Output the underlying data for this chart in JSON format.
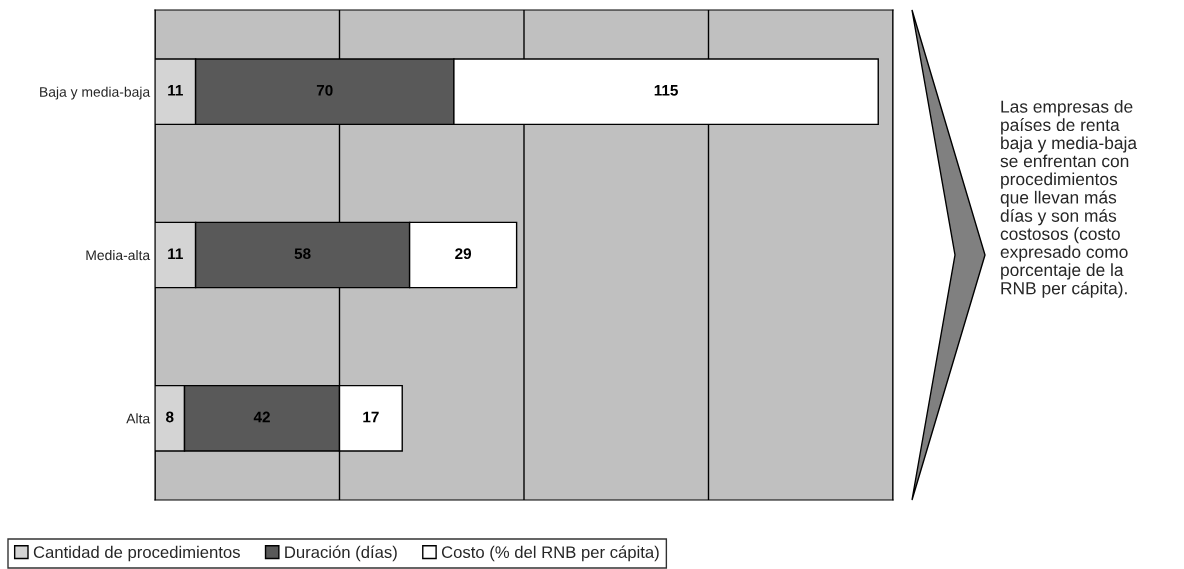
{
  "chart_data": {
    "type": "bar",
    "orientation": "horizontal",
    "stacked": true,
    "categories": [
      "Baja y media-baja",
      "Media-alta",
      "Alta"
    ],
    "series": [
      {
        "name": "Cantidad de procedimientos",
        "color": "#d4d4d4",
        "values": [
          11,
          11,
          8
        ]
      },
      {
        "name": "Duración (días)",
        "color": "#595959",
        "values": [
          70,
          58,
          42
        ]
      },
      {
        "name": "Costo (% del RNB per cápita)",
        "color": "#ffffff",
        "values": [
          115,
          29,
          17
        ]
      }
    ],
    "xlim": [
      0,
      200
    ],
    "xticks": [
      {
        "value": 0,
        "label": null
      },
      {
        "value": 50,
        "label": null
      },
      {
        "value": 100,
        "label": null
      },
      {
        "value": 150,
        "label": null
      },
      {
        "value": 200,
        "label": null
      }
    ],
    "tick_labels": "y",
    "grid": "x",
    "data_labels": true,
    "legend": "bottom",
    "annotations": [
      "Las empresas de\npaíses de renta\nbaja y media-baja\nse enfrentan con\nprocedimientos\nque llevan más\ndías y son más\ncostosos (costo\nexpresado como\nporcentaje de la\nRNB per cápita)."
    ]
  }
}
